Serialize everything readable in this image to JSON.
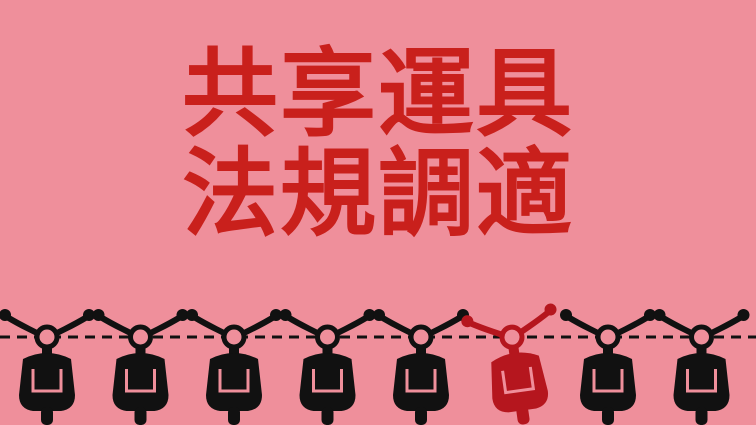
{
  "title": {
    "line1": "共享運具",
    "line2": "法規調適"
  },
  "colors": {
    "background": "#ef8f9b",
    "title": "#c9201c",
    "scooter": "#111111",
    "highlight_scooter": "#b5161e"
  },
  "scooters": [
    {
      "highlight": false
    },
    {
      "highlight": false
    },
    {
      "highlight": false
    },
    {
      "highlight": false
    },
    {
      "highlight": false
    },
    {
      "highlight": true
    },
    {
      "highlight": false
    },
    {
      "highlight": false
    }
  ]
}
